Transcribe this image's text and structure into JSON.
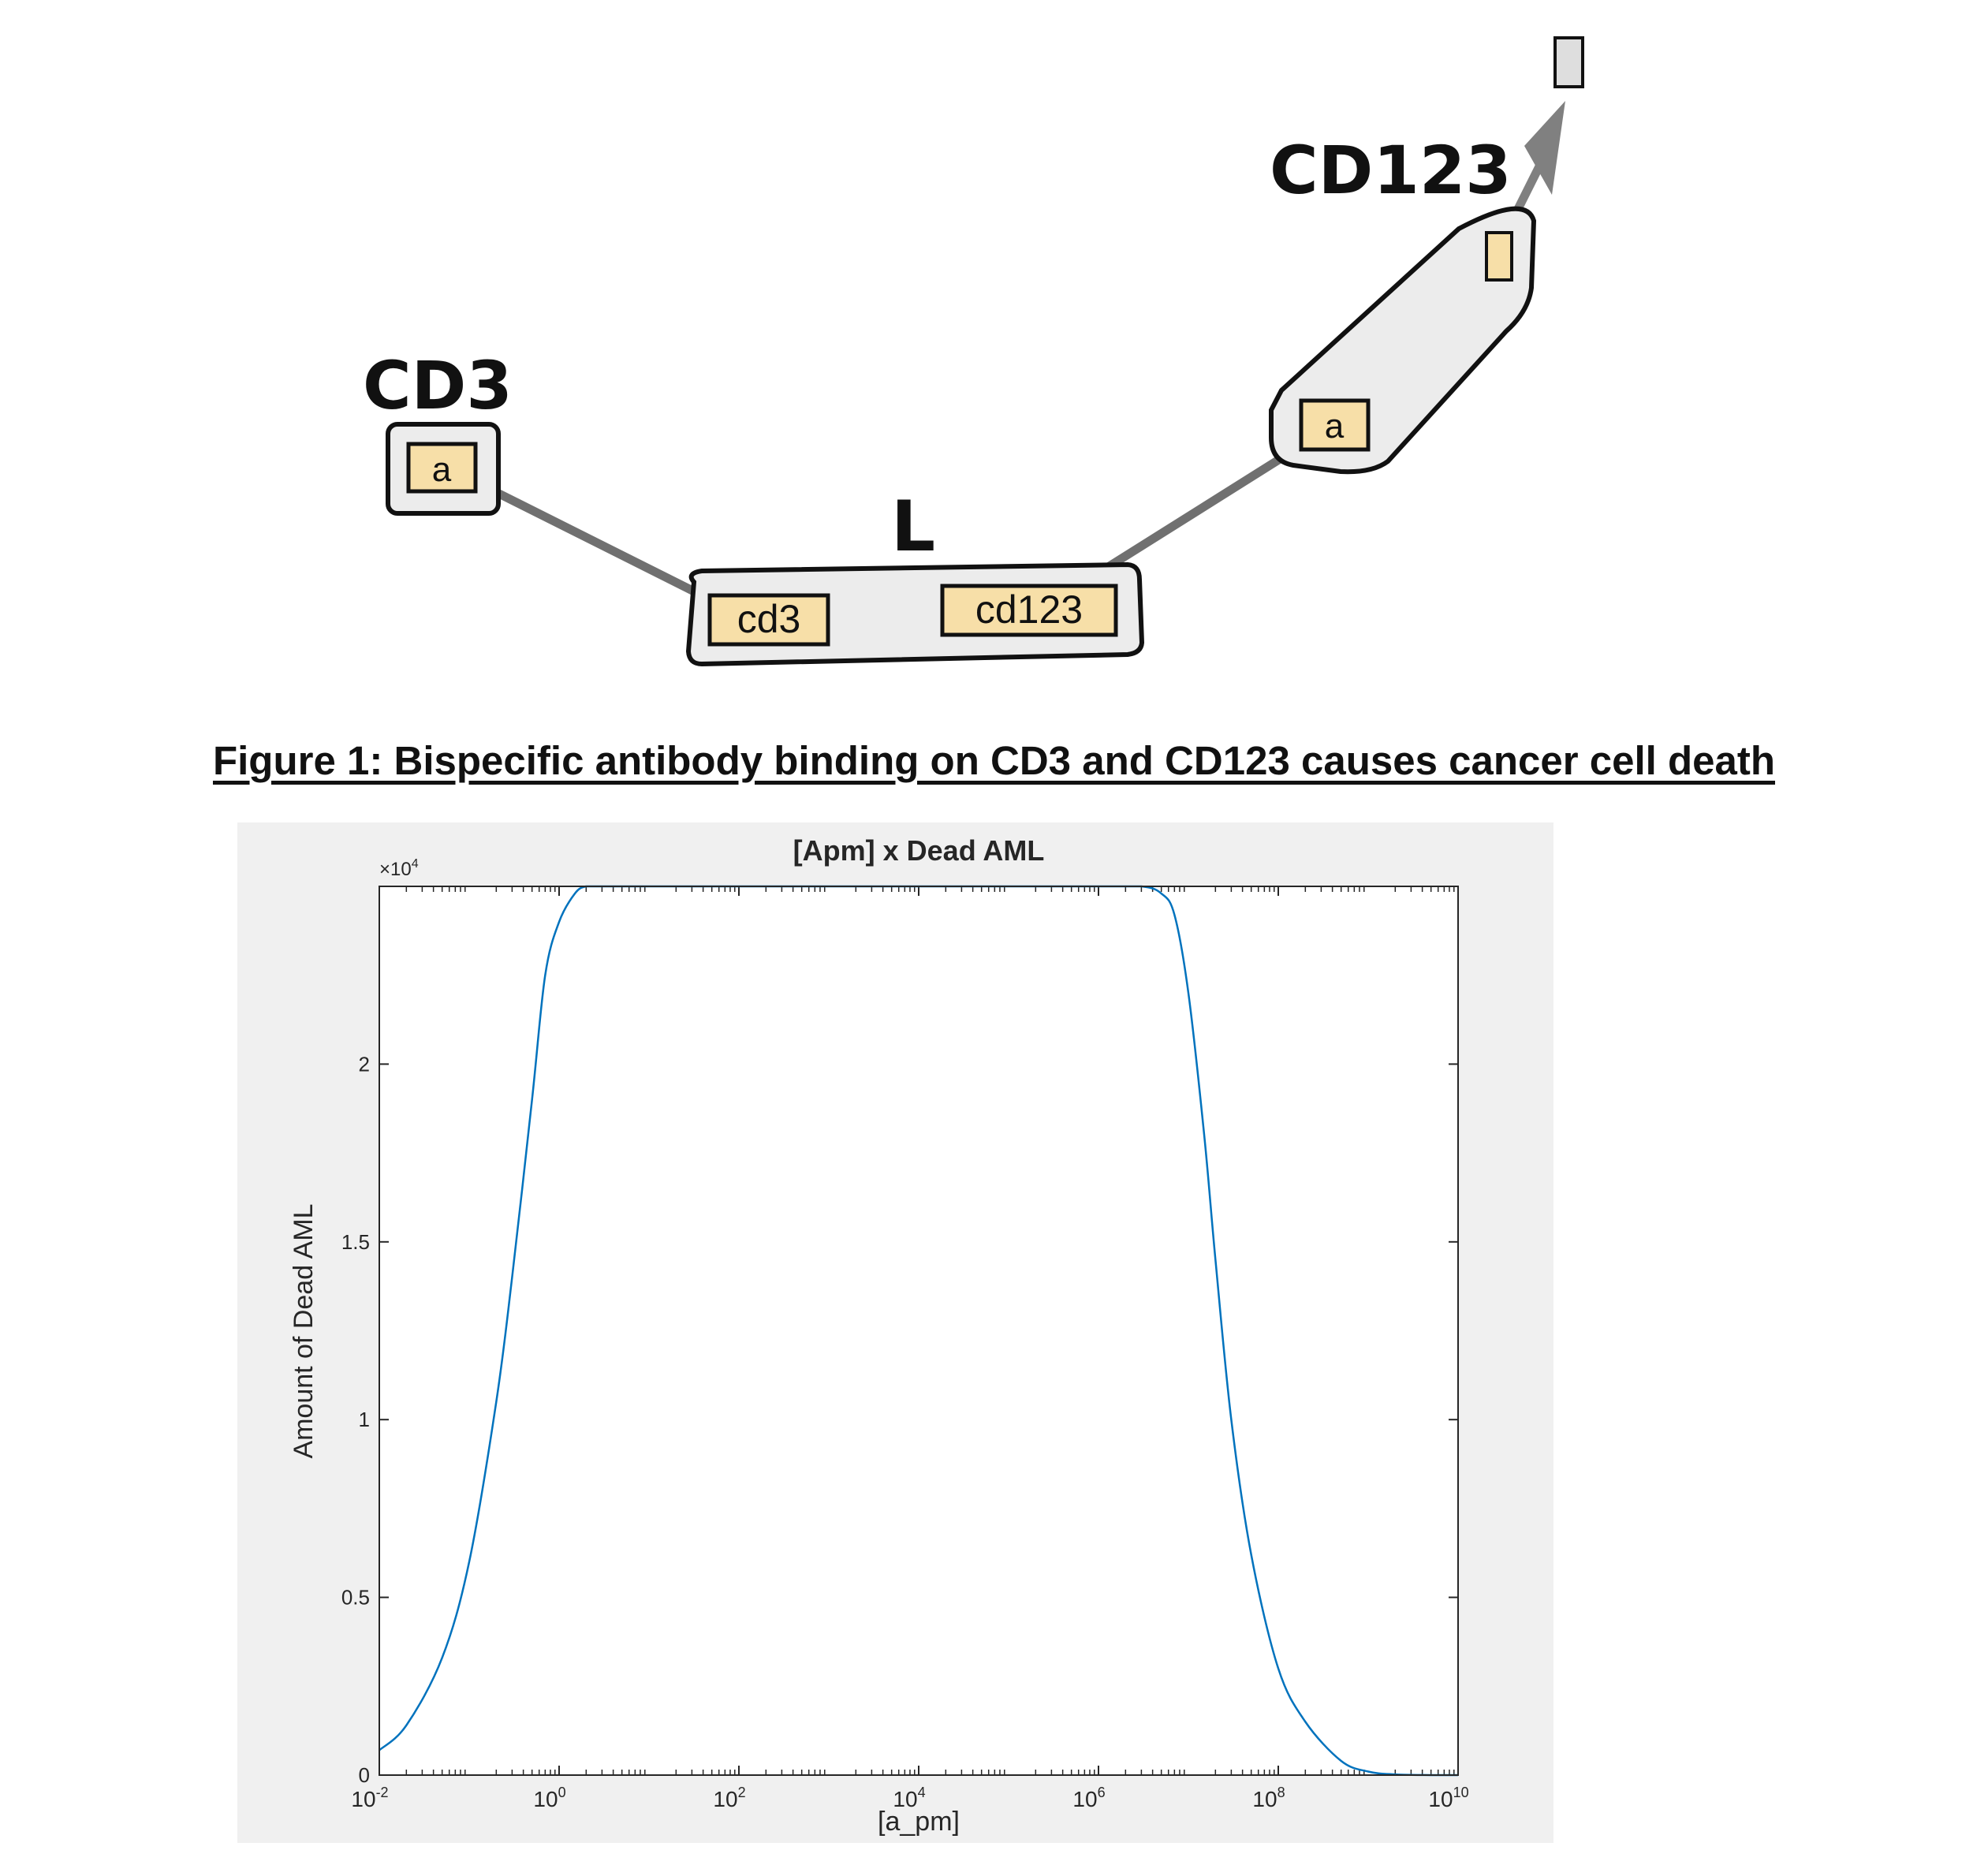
{
  "diagram": {
    "title_cd3": "CD3",
    "title_cd123": "CD123",
    "title_l": "L",
    "box_a_left": "a",
    "box_a_right": "a",
    "box_cd3": "cd3",
    "box_cd123": "cd123"
  },
  "figure_caption": "Figure 1: Bispecific antibody binding on CD3 and CD123 causes cancer cell death",
  "chart_data": {
    "type": "line",
    "title": "[Apm] x Dead AML",
    "xlabel": "[a_pm]",
    "ylabel": "Amount of Dead AML",
    "x_scale": "log",
    "xlim": [
      0.01,
      10000000000
    ],
    "ylim": [
      0,
      25000
    ],
    "y_exponent_label": "×10",
    "y_exponent_power": "4",
    "x_tick_base": "10",
    "x_ticks": [
      {
        "exp": "-2"
      },
      {
        "exp": "0"
      },
      {
        "exp": "2"
      },
      {
        "exp": "4"
      },
      {
        "exp": "6"
      },
      {
        "exp": "8"
      },
      {
        "exp": "10"
      }
    ],
    "y_ticks": [
      "0",
      "0.5",
      "1",
      "1.5",
      "2"
    ],
    "y_tick_values": [
      0,
      5000,
      10000,
      15000,
      20000
    ],
    "grid": false,
    "line_color": "#0072BD",
    "series": [
      {
        "x": [
          0.01,
          0.02,
          0.05,
          0.1,
          0.2,
          0.3,
          0.5,
          0.7,
          1,
          1.5,
          2,
          3,
          5,
          10,
          100,
          10000,
          1000000,
          3000000,
          5000000,
          7000000,
          10000000,
          15000000,
          20000000,
          30000000,
          50000000,
          100000000,
          200000000,
          500000000,
          1000000000,
          2000000000,
          5000000000,
          10000000000
        ],
        "y": [
          700,
          1400,
          3300,
          6000,
          10500,
          14000,
          19000,
          22500,
          24000,
          24800,
          25000,
          25000,
          25000,
          25000,
          25000,
          25000,
          25000,
          25000,
          24800,
          24200,
          22000,
          18000,
          14500,
          10000,
          6200,
          3000,
          1500,
          400,
          100,
          20,
          0,
          0
        ]
      }
    ]
  }
}
